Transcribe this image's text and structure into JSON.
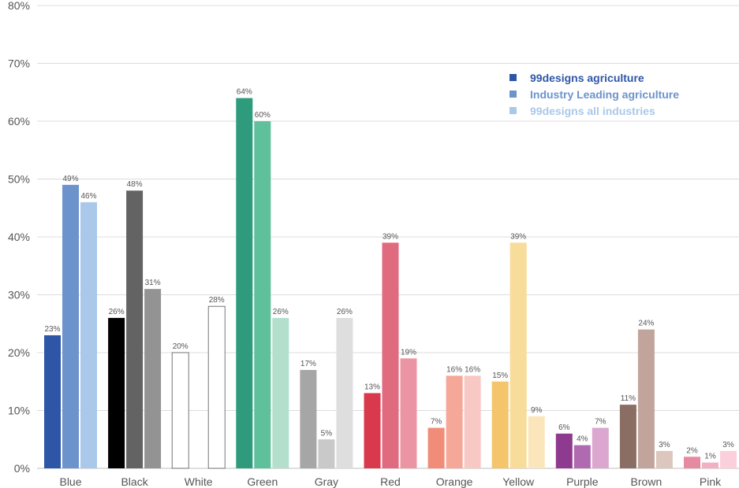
{
  "chart_data": {
    "type": "bar",
    "ylim": [
      0,
      80
    ],
    "y_ticks": [
      "0%",
      "10%",
      "20%",
      "30%",
      "40%",
      "50%",
      "60%",
      "70%",
      "80%"
    ],
    "grid": "horizontal",
    "legend_position": "top-right",
    "categories": [
      "Blue",
      "Black",
      "White",
      "Green",
      "Gray",
      "Red",
      "Orange",
      "Yellow",
      "Purple",
      "Brown",
      "Pink"
    ],
    "series": [
      {
        "name": "99designs agriculture",
        "legend_color": "#2e56a6",
        "values": [
          23,
          26,
          20,
          64,
          17,
          13,
          7,
          15,
          6,
          11,
          2
        ],
        "labels": [
          "23%",
          "26%",
          "20%",
          "64%",
          "17%",
          "13%",
          "7%",
          "15%",
          "6%",
          "11%",
          "2%"
        ],
        "colors": [
          "#2e56a6",
          "#000000",
          "#ffffff",
          "#2f9b7d",
          "#a6a6a6",
          "#d9394d",
          "#f08c78",
          "#f4c56a",
          "#8e3a8f",
          "#8b6e63",
          "#e58aa1"
        ]
      },
      {
        "name": "Industry Leading agriculture",
        "legend_color": "#6c93cc",
        "values": [
          49,
          48,
          0,
          60,
          5,
          39,
          16,
          39,
          4,
          24,
          1
        ],
        "labels": [
          "49%",
          "48%",
          "",
          "60%",
          "5%",
          "39%",
          "16%",
          "39%",
          "4%",
          "24%",
          "1%"
        ],
        "colors": [
          "#6c93cc",
          "#636363",
          "#ffffff",
          "#5fc09c",
          "#c9c9c9",
          "#e06a7e",
          "#f5a798",
          "#f8dc9a",
          "#b06ab0",
          "#c1a59c",
          "#f2b0c2"
        ]
      },
      {
        "name": "99designs all industries",
        "legend_color": "#a9c8ea",
        "values": [
          46,
          31,
          28,
          26,
          26,
          19,
          16,
          9,
          7,
          3,
          3
        ],
        "labels": [
          "46%",
          "31%",
          "28%",
          "26%",
          "26%",
          "19%",
          "16%",
          "9%",
          "7%",
          "3%",
          "3%"
        ],
        "colors": [
          "#a9c8ea",
          "#939393",
          "#ffffff",
          "#b2e0cc",
          "#dedede",
          "#ec95a2",
          "#f8c8c4",
          "#fbe5bb",
          "#dba6cf",
          "#dcc6be",
          "#fbd0dc"
        ]
      }
    ]
  }
}
